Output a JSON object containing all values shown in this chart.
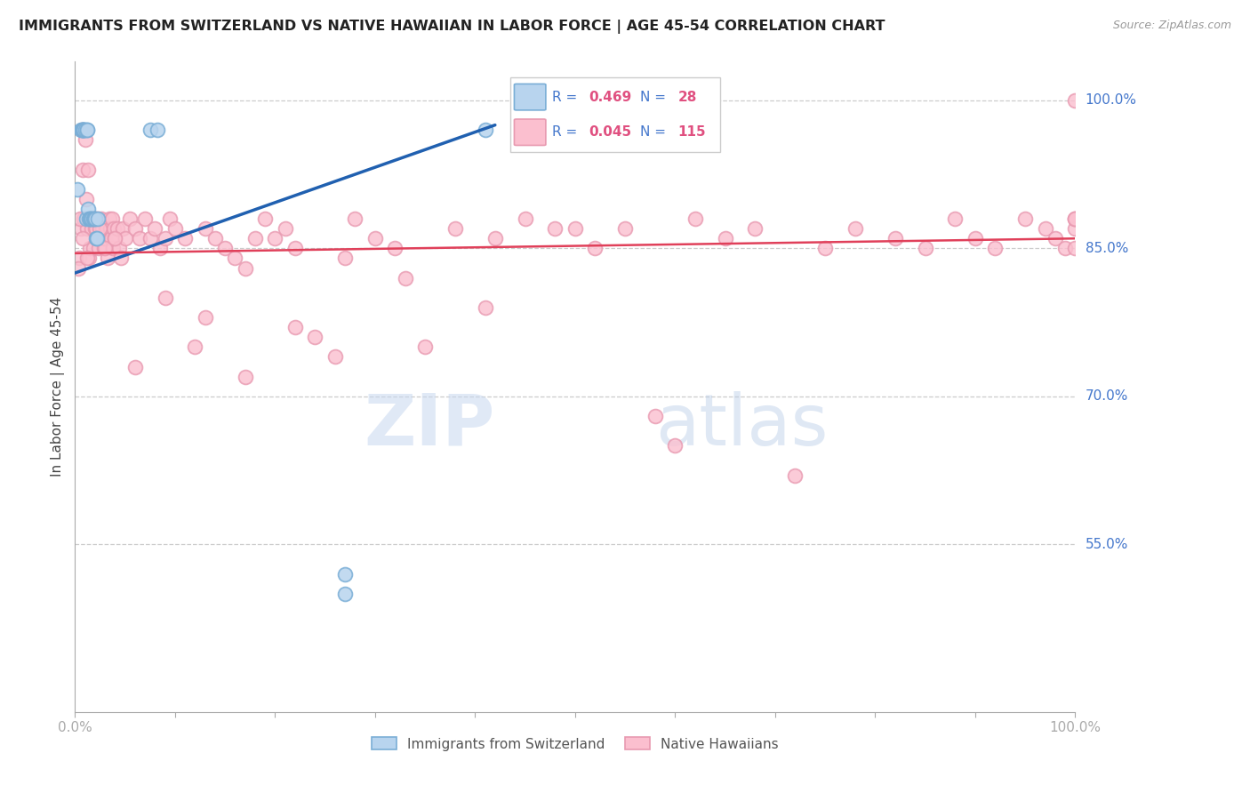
{
  "title": "IMMIGRANTS FROM SWITZERLAND VS NATIVE HAWAIIAN IN LABOR FORCE | AGE 45-54 CORRELATION CHART",
  "source": "Source: ZipAtlas.com",
  "ylabel": "In Labor Force | Age 45-54",
  "xlim": [
    0.0,
    1.0
  ],
  "ylim": [
    0.38,
    1.04
  ],
  "ytick_positions": [
    1.0,
    0.85,
    0.7,
    0.55
  ],
  "ytick_labels": [
    "100.0%",
    "85.0%",
    "70.0%",
    "55.0%"
  ],
  "watermark": "ZIPatlas",
  "blue_x": [
    0.002,
    0.006,
    0.007,
    0.008,
    0.008,
    0.009,
    0.009,
    0.009,
    0.01,
    0.011,
    0.012,
    0.012,
    0.013,
    0.014,
    0.015,
    0.016,
    0.017,
    0.018,
    0.019,
    0.02,
    0.021,
    0.022,
    0.023,
    0.075,
    0.082,
    0.27,
    0.27,
    0.41
  ],
  "blue_y": [
    0.91,
    0.97,
    0.97,
    0.97,
    0.97,
    0.97,
    0.97,
    0.97,
    0.97,
    0.88,
    0.97,
    0.97,
    0.89,
    0.88,
    0.88,
    0.88,
    0.88,
    0.88,
    0.88,
    0.88,
    0.86,
    0.86,
    0.88,
    0.97,
    0.97,
    0.52,
    0.5,
    0.97
  ],
  "pink_x": [
    0.004,
    0.006,
    0.007,
    0.008,
    0.009,
    0.01,
    0.011,
    0.012,
    0.013,
    0.014,
    0.015,
    0.016,
    0.017,
    0.018,
    0.019,
    0.02,
    0.02,
    0.021,
    0.022,
    0.023,
    0.024,
    0.025,
    0.026,
    0.027,
    0.028,
    0.029,
    0.03,
    0.031,
    0.032,
    0.033,
    0.034,
    0.035,
    0.036,
    0.037,
    0.038,
    0.039,
    0.04,
    0.042,
    0.044,
    0.046,
    0.048,
    0.05,
    0.055,
    0.06,
    0.065,
    0.07,
    0.075,
    0.08,
    0.085,
    0.09,
    0.095,
    0.1,
    0.11,
    0.12,
    0.13,
    0.14,
    0.15,
    0.16,
    0.17,
    0.18,
    0.19,
    0.2,
    0.21,
    0.22,
    0.24,
    0.26,
    0.28,
    0.3,
    0.32,
    0.35,
    0.38,
    0.42,
    0.45,
    0.48,
    0.5,
    0.52,
    0.55,
    0.58,
    0.6,
    0.62,
    0.65,
    0.68,
    0.72,
    0.75,
    0.78,
    0.82,
    0.85,
    0.88,
    0.9,
    0.92,
    0.95,
    0.97,
    0.98,
    0.99,
    1.0,
    1.0,
    1.0,
    1.0,
    1.0,
    1.0,
    0.003,
    0.005,
    0.008,
    0.012,
    0.025,
    0.03,
    0.04,
    0.06,
    0.09,
    0.13,
    0.17,
    0.22,
    0.27,
    0.33,
    0.41
  ],
  "pink_y": [
    0.84,
    0.87,
    0.97,
    0.93,
    0.88,
    0.96,
    0.9,
    0.87,
    0.93,
    0.84,
    0.85,
    0.88,
    0.87,
    0.85,
    0.88,
    0.88,
    0.87,
    0.87,
    0.86,
    0.88,
    0.85,
    0.86,
    0.88,
    0.87,
    0.86,
    0.85,
    0.86,
    0.87,
    0.87,
    0.84,
    0.88,
    0.87,
    0.86,
    0.88,
    0.85,
    0.87,
    0.86,
    0.87,
    0.85,
    0.84,
    0.87,
    0.86,
    0.88,
    0.87,
    0.86,
    0.88,
    0.86,
    0.87,
    0.85,
    0.86,
    0.88,
    0.87,
    0.86,
    0.75,
    0.87,
    0.86,
    0.85,
    0.84,
    0.72,
    0.86,
    0.88,
    0.86,
    0.87,
    0.85,
    0.76,
    0.74,
    0.88,
    0.86,
    0.85,
    0.75,
    0.87,
    0.86,
    0.88,
    0.87,
    0.87,
    0.85,
    0.87,
    0.68,
    0.65,
    0.88,
    0.86,
    0.87,
    0.62,
    0.85,
    0.87,
    0.86,
    0.85,
    0.88,
    0.86,
    0.85,
    0.88,
    0.87,
    0.86,
    0.85,
    0.87,
    0.88,
    0.85,
    0.88,
    0.88,
    1.0,
    0.83,
    0.88,
    0.86,
    0.84,
    0.87,
    0.85,
    0.86,
    0.73,
    0.8,
    0.78,
    0.83,
    0.77,
    0.84,
    0.82,
    0.79
  ]
}
